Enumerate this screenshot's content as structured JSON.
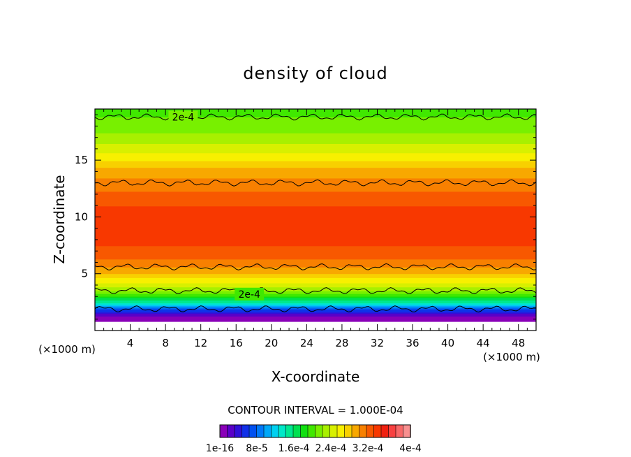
{
  "chart_data": {
    "type": "heatmap",
    "title": "density of cloud",
    "xlabel": "X-coordinate",
    "ylabel": "Z-coordinate",
    "x_unit_left": "(×1000 m)",
    "x_unit_right": "(×1000 m)",
    "xlim": [
      0,
      50
    ],
    "ylim": [
      0,
      19.5
    ],
    "x_ticks": [
      4,
      8,
      12,
      16,
      20,
      24,
      28,
      32,
      36,
      40,
      44,
      48
    ],
    "y_ticks": [
      5,
      10,
      15
    ],
    "contour_interval_text": "CONTOUR INTERVAL = 1.000E-04",
    "contour_labels": [
      {
        "text": "2e-4",
        "x": 10,
        "z": 18.8
      },
      {
        "text": "2e-4",
        "x": 17.5,
        "z": 3.2
      }
    ],
    "colorbar": {
      "tick_labels": [
        "1e-16",
        "8e-5",
        "1.6e-4",
        "2.4e-4",
        "3.2e-4",
        "4e-4"
      ],
      "colors": [
        "#8a00b8",
        "#5a00c8",
        "#3010d8",
        "#1030e8",
        "#0050f0",
        "#0078f8",
        "#00a8f8",
        "#00d0f0",
        "#00e8c8",
        "#00e890",
        "#00e050",
        "#10e010",
        "#40e800",
        "#78f000",
        "#a8f000",
        "#d8f000",
        "#f8f000",
        "#f8d000",
        "#f8a800",
        "#f88000",
        "#f85800",
        "#f83800",
        "#f02010",
        "#f84040",
        "#f86868",
        "#f89090"
      ]
    },
    "profile": [
      {
        "z": 0.8,
        "value": 0.0
      },
      {
        "z": 1.2,
        "value": 1e-05
      },
      {
        "z": 1.5,
        "value": 3e-05
      },
      {
        "z": 1.8,
        "value": 6e-05
      },
      {
        "z": 2.1,
        "value": 0.0001
      },
      {
        "z": 2.5,
        "value": 0.00014
      },
      {
        "z": 3.0,
        "value": 0.00018
      },
      {
        "z": 3.5,
        "value": 0.000215
      },
      {
        "z": 4.2,
        "value": 0.000245
      },
      {
        "z": 5.0,
        "value": 0.000275
      },
      {
        "z": 5.8,
        "value": 0.0003
      },
      {
        "z": 7.0,
        "value": 0.00032
      },
      {
        "z": 8.5,
        "value": 0.00033
      },
      {
        "z": 10.5,
        "value": 0.00033
      },
      {
        "z": 12.0,
        "value": 0.00031
      },
      {
        "z": 13.0,
        "value": 0.0003
      },
      {
        "z": 14.2,
        "value": 0.00028
      },
      {
        "z": 15.5,
        "value": 0.00025
      },
      {
        "z": 17.0,
        "value": 0.00022
      },
      {
        "z": 18.8,
        "value": 0.0002
      },
      {
        "z": 19.5,
        "value": 0.00019
      }
    ],
    "contour_lines_z": [
      1.9,
      3.5,
      5.6,
      13.0,
      18.8
    ]
  }
}
